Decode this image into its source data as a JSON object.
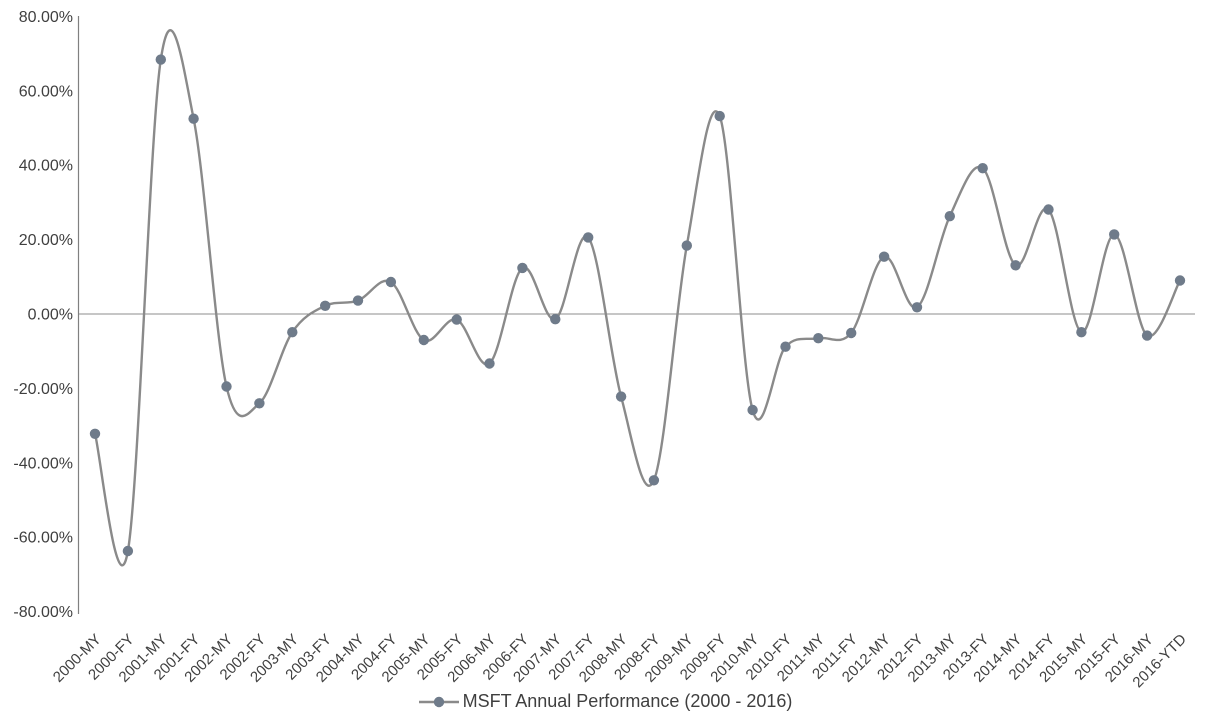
{
  "chart_data": {
    "type": "line",
    "title": "",
    "legend": "MSFT Annual Performance (2000 - 2016)",
    "legend_position": "bottom",
    "smooth_line": true,
    "grid": "zero-line-only",
    "xlabel": "",
    "ylabel": "",
    "ylim": [
      -80,
      80
    ],
    "y_tick_format": "percent-2dp",
    "y_ticks": [
      80,
      60,
      40,
      20,
      0,
      -20,
      -40,
      -60,
      -80
    ],
    "y_tick_labels": [
      "80.00%",
      "60.00%",
      "40.00%",
      "20.00%",
      "0.00%",
      "-20.00%",
      "-40.00%",
      "-60.00%",
      "-80.00%"
    ],
    "categories": [
      "2000-MY",
      "2000-FY",
      "2001-MY",
      "2001-FY",
      "2002-MY",
      "2002-FY",
      "2003-MY",
      "2003-FY",
      "2004-MY",
      "2004-FY",
      "2005-MY",
      "2005-FY",
      "2006-MY",
      "2006-FY",
      "2007-MY",
      "2007-FY",
      "2008-MY",
      "2008-FY",
      "2009-MY",
      "2009-FY",
      "2010-MY",
      "2010-FY",
      "2011-MY",
      "2011-FY",
      "2012-MY",
      "2012-FY",
      "2013-MY",
      "2013-FY",
      "2014-MY",
      "2014-FY",
      "2015-MY",
      "2015-FY",
      "2016-MY",
      "2016-YTD"
    ],
    "values": [
      -32.2,
      -63.7,
      68.4,
      52.5,
      -19.5,
      -24.0,
      -4.9,
      2.2,
      3.6,
      8.6,
      -7.0,
      -1.5,
      -13.3,
      12.4,
      -1.4,
      20.6,
      -22.2,
      -44.7,
      18.4,
      53.2,
      -25.8,
      -8.8,
      -6.5,
      -5.1,
      15.4,
      1.8,
      26.3,
      39.2,
      13.1,
      28.1,
      -4.9,
      21.4,
      -5.8,
      9.0
    ],
    "colors": {
      "line": "#8a8a8a",
      "marker": "#6f7b8a",
      "axis_line": "#808080",
      "zero_line": "#8e8e8e",
      "text": "#3f3f3f",
      "background": "#ffffff"
    }
  }
}
